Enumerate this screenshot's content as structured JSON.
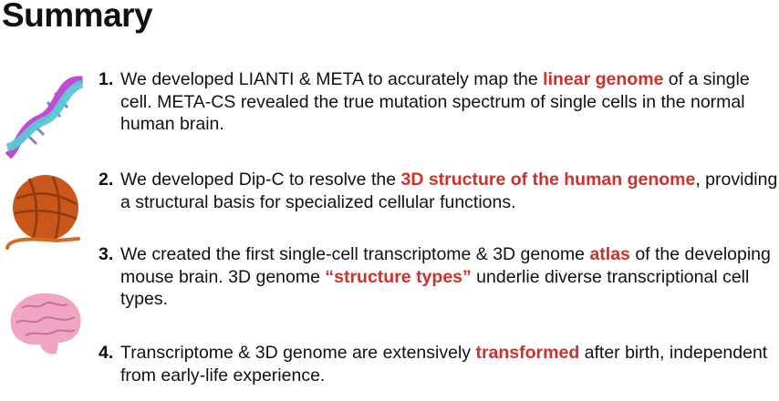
{
  "title": "Summary",
  "highlight_color": "#d0302b",
  "items": [
    {
      "number": "1.",
      "icon": "dna-icon",
      "segments": [
        {
          "text": "We developed LIANTI & META to accurately map the ",
          "hl": false
        },
        {
          "text": "linear genome",
          "hl": true
        },
        {
          "text": " of a single cell. META-CS revealed the true mutation spectrum of single cells in the normal human brain.",
          "hl": false
        }
      ]
    },
    {
      "number": "2.",
      "icon": "yarn-ball-icon",
      "segments": [
        {
          "text": "We developed Dip-C to resolve the ",
          "hl": false
        },
        {
          "text": "3D structure of the human genome",
          "hl": true
        },
        {
          "text": ", providing a structural basis for specialized cellular functions.",
          "hl": false
        }
      ]
    },
    {
      "number": "3.",
      "icon": "brain-icon",
      "segments": [
        {
          "text": "We created the first single-cell transcriptome & 3D genome ",
          "hl": false
        },
        {
          "text": "atlas",
          "hl": true
        },
        {
          "text": " of the developing mouse brain. 3D genome ",
          "hl": false
        },
        {
          "text": "“structure types”",
          "hl": true
        },
        {
          "text": " underlie diverse transcriptional cell types.",
          "hl": false
        }
      ]
    },
    {
      "number": "4.",
      "icon": null,
      "segments": [
        {
          "text": "Transcriptome & 3D genome are extensively ",
          "hl": false
        },
        {
          "text": "transformed",
          "hl": true
        },
        {
          "text": " after birth, independent from early-life experience.",
          "hl": false
        }
      ]
    }
  ]
}
